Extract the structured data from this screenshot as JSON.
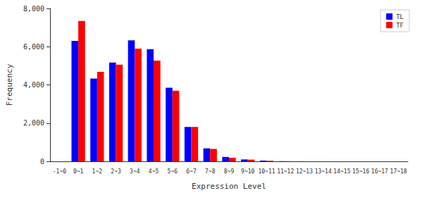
{
  "chart_data": {
    "type": "bar",
    "x_label": "Expression Level",
    "y_label": "Frequency",
    "categories": [
      "-1~0",
      "0~1",
      "1~2",
      "2~3",
      "3~4",
      "4~5",
      "5~6",
      "6~7",
      "7~8",
      "8~9",
      "9~10",
      "10~11",
      "11~12",
      "12~13",
      "13~14",
      "14~15",
      "15~16",
      "16~17",
      "17~18"
    ],
    "series": [
      {
        "name": "TL",
        "color": "#0000ff",
        "values": [
          0,
          6300,
          4330,
          5170,
          6330,
          5870,
          3850,
          1800,
          680,
          230,
          100,
          40,
          10,
          5,
          2,
          1,
          0,
          0,
          0
        ]
      },
      {
        "name": "TF",
        "color": "#ff0000",
        "values": [
          0,
          7350,
          4680,
          5060,
          5900,
          5270,
          3700,
          1800,
          650,
          190,
          90,
          30,
          8,
          3,
          1,
          1,
          0,
          0,
          0
        ]
      }
    ],
    "ylim": [
      0,
      8000
    ],
    "yticks": [
      0,
      {
        "value": 2000,
        "label": "2,000"
      },
      {
        "value": 4000,
        "label": "4,000"
      },
      {
        "value": 6000,
        "label": "6,000"
      },
      {
        "value": 8000,
        "label": "8,000"
      }
    ],
    "grid": false,
    "legend": "top-right"
  }
}
